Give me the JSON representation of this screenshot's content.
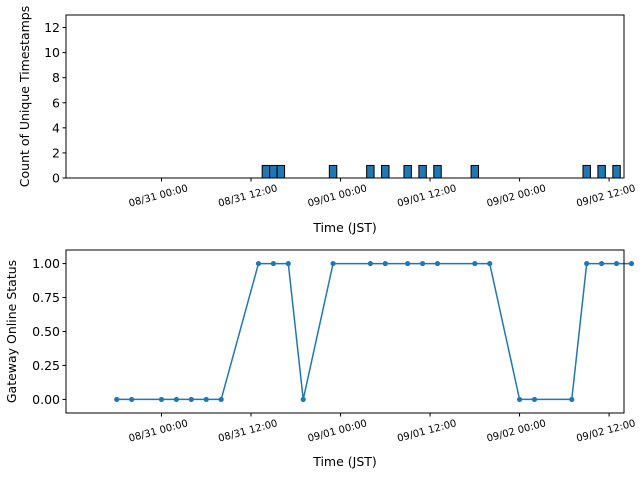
{
  "chart_data": [
    {
      "type": "bar",
      "xlabel": "Time (JST)",
      "ylabel": "Count of Unique Timestamps",
      "ylim": [
        0,
        13
      ],
      "xlim": [
        "2023-08-30 11:12",
        "2023-09-02 14:00"
      ],
      "yticks": [
        0,
        2,
        4,
        6,
        8,
        10,
        12
      ],
      "xticks": [
        "2023-08-31 00:00",
        "2023-08-31 12:00",
        "2023-09-01 00:00",
        "2023-09-01 12:00",
        "2023-09-02 00:00",
        "2023-09-02 12:00"
      ],
      "xtick_labels": [
        "08/31 00:00",
        "08/31 12:00",
        "09/01 00:00",
        "09/01 12:00",
        "09/02 00:00",
        "09/02 12:00"
      ],
      "bar_width_hours": 1,
      "bars": [
        {
          "time": "2023-08-31 14:00",
          "value": 1
        },
        {
          "time": "2023-08-31 15:00",
          "value": 1
        },
        {
          "time": "2023-08-31 16:00",
          "value": 1
        },
        {
          "time": "2023-08-31 23:00",
          "value": 1
        },
        {
          "time": "2023-09-01 04:00",
          "value": 1
        },
        {
          "time": "2023-09-01 06:00",
          "value": 1
        },
        {
          "time": "2023-09-01 09:00",
          "value": 1
        },
        {
          "time": "2023-09-01 11:00",
          "value": 1
        },
        {
          "time": "2023-09-01 13:00",
          "value": 1
        },
        {
          "time": "2023-09-01 18:00",
          "value": 1
        },
        {
          "time": "2023-09-02 09:00",
          "value": 1
        },
        {
          "time": "2023-09-02 11:00",
          "value": 1
        },
        {
          "time": "2023-09-02 13:00",
          "value": 1
        }
      ],
      "color": "#1f77b4",
      "edgecolor": "#000000"
    },
    {
      "type": "line",
      "xlabel": "Time (JST)",
      "ylabel": "Gateway Online Status",
      "ylim": [
        -0.1,
        1.1
      ],
      "xlim": [
        "2023-08-30 11:12",
        "2023-09-02 14:00"
      ],
      "yticks": [
        0.0,
        0.25,
        0.5,
        0.75,
        1.0
      ],
      "ytick_labels": [
        "0.00",
        "0.25",
        "0.50",
        "0.75",
        "1.00"
      ],
      "xticks": [
        "2023-08-31 00:00",
        "2023-08-31 12:00",
        "2023-09-01 00:00",
        "2023-09-01 12:00",
        "2023-09-02 00:00",
        "2023-09-02 12:00"
      ],
      "xtick_labels": [
        "08/31 00:00",
        "08/31 12:00",
        "09/01 00:00",
        "09/01 12:00",
        "09/02 00:00",
        "09/02 12:00"
      ],
      "points": [
        {
          "time": "2023-08-30 18:00",
          "value": 0
        },
        {
          "time": "2023-08-30 20:00",
          "value": 0
        },
        {
          "time": "2023-08-31 00:00",
          "value": 0
        },
        {
          "time": "2023-08-31 02:00",
          "value": 0
        },
        {
          "time": "2023-08-31 04:00",
          "value": 0
        },
        {
          "time": "2023-08-31 06:00",
          "value": 0
        },
        {
          "time": "2023-08-31 08:00",
          "value": 0
        },
        {
          "time": "2023-08-31 13:00",
          "value": 1
        },
        {
          "time": "2023-08-31 15:00",
          "value": 1
        },
        {
          "time": "2023-08-31 17:00",
          "value": 1
        },
        {
          "time": "2023-08-31 19:00",
          "value": 0
        },
        {
          "time": "2023-08-31 23:00",
          "value": 1
        },
        {
          "time": "2023-09-01 04:00",
          "value": 1
        },
        {
          "time": "2023-09-01 06:00",
          "value": 1
        },
        {
          "time": "2023-09-01 09:00",
          "value": 1
        },
        {
          "time": "2023-09-01 11:00",
          "value": 1
        },
        {
          "time": "2023-09-01 13:00",
          "value": 1
        },
        {
          "time": "2023-09-01 18:00",
          "value": 1
        },
        {
          "time": "2023-09-01 20:00",
          "value": 1
        },
        {
          "time": "2023-09-02 00:00",
          "value": 0
        },
        {
          "time": "2023-09-02 02:00",
          "value": 0
        },
        {
          "time": "2023-09-02 07:00",
          "value": 0
        },
        {
          "time": "2023-09-02 09:00",
          "value": 1
        },
        {
          "time": "2023-09-02 11:00",
          "value": 1
        },
        {
          "time": "2023-09-02 13:00",
          "value": 1
        },
        {
          "time": "2023-09-02 15:00",
          "value": 1
        }
      ],
      "color": "#1f77b4"
    }
  ]
}
